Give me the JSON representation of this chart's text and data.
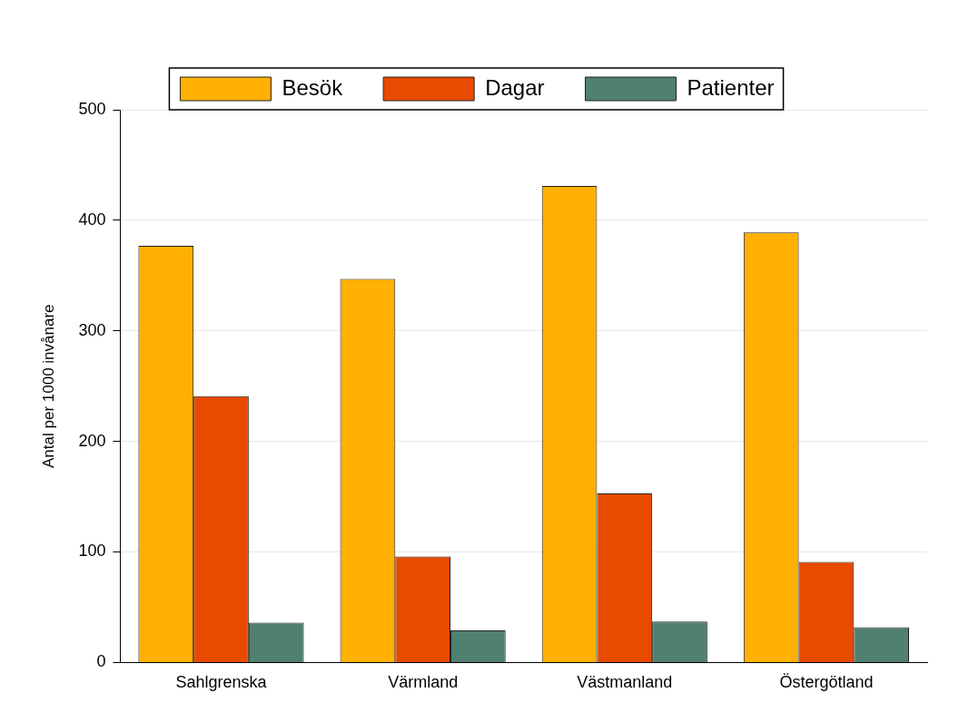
{
  "chart_data": {
    "type": "bar",
    "ylabel": "Antal per 1000 invånare",
    "categories": [
      "Sahlgrenska",
      "Värmland",
      "Västmanland",
      "Östergötland"
    ],
    "series": [
      {
        "name": "Besök",
        "color": "#ffb000",
        "values": [
          377,
          347,
          431,
          389
        ]
      },
      {
        "name": "Dagar",
        "color": "#e84a00",
        "values": [
          241,
          96,
          153,
          91
        ]
      },
      {
        "name": "Patienter",
        "color": "#508070",
        "values": [
          36,
          29,
          37,
          32
        ]
      }
    ],
    "ylim": [
      0,
      500
    ],
    "yticks": [
      0,
      100,
      200,
      300,
      400,
      500
    ],
    "grid": "y",
    "legend": "top"
  }
}
